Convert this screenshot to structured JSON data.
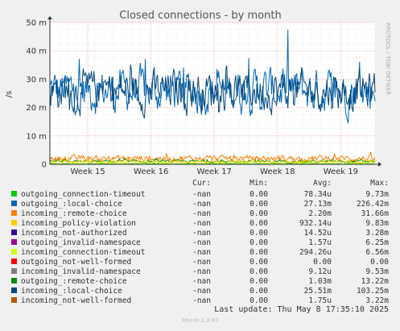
{
  "chart_data": {
    "type": "line",
    "title": "Closed connections - by month",
    "ylabel": "/s",
    "side_label": "RRDTOOL / TOBI OETIKER",
    "ylim": [
      0,
      50
    ],
    "y_unit": "m",
    "yticks": [
      0,
      10,
      20,
      30,
      40,
      50
    ],
    "ytick_labels": [
      "0",
      "10 m",
      "20 m",
      "30 m",
      "40 m",
      "50 m"
    ],
    "x_range_days": [
      0,
      36
    ],
    "xticks": [
      {
        "day": 4.2,
        "label": "Week 15"
      },
      {
        "day": 11.2,
        "label": "Week 16"
      },
      {
        "day": 18.2,
        "label": "Week 17"
      },
      {
        "day": 25.2,
        "label": "Week 18"
      },
      {
        "day": 32.2,
        "label": "Week 19"
      }
    ],
    "grid": true,
    "legend_headers": {
      "cur": "Cur:",
      "min": "Min:",
      "avg": "Avg:",
      "max": "Max:"
    },
    "series": [
      {
        "name": "outgoing_connection-timeout",
        "color": "#00cc00",
        "cur": "-nan",
        "min": "0.00",
        "avg": "78.34u",
        "max": "9.73m"
      },
      {
        "name": "outgoing_:local-choice",
        "color": "#0066b3",
        "cur": "-nan",
        "min": "0.00",
        "avg": "27.13m",
        "max": "226.42m"
      },
      {
        "name": "incoming_:remote-choice",
        "color": "#ff8000",
        "cur": "-nan",
        "min": "0.00",
        "avg": "2.20m",
        "max": "31.66m"
      },
      {
        "name": "incoming_policy-violation",
        "color": "#ffcc00",
        "cur": "-nan",
        "min": "0.00",
        "avg": "932.14u",
        "max": "9.83m"
      },
      {
        "name": "incoming_not-authorized",
        "color": "#330099",
        "cur": "-nan",
        "min": "0.00",
        "avg": "14.52u",
        "max": "3.28m"
      },
      {
        "name": "outgoing_invalid-namespace",
        "color": "#990099",
        "cur": "-nan",
        "min": "0.00",
        "avg": "1.57u",
        "max": "6.25m"
      },
      {
        "name": "incoming_connection-timeout",
        "color": "#ccff00",
        "cur": "-nan",
        "min": "0.00",
        "avg": "294.26u",
        "max": "6.56m"
      },
      {
        "name": "outgoing_not-well-formed",
        "color": "#ff0000",
        "cur": "-nan",
        "min": "0.00",
        "avg": "0.00",
        "max": "0.00"
      },
      {
        "name": "incoming_invalid-namespace",
        "color": "#808080",
        "cur": "-nan",
        "min": "0.00",
        "avg": "9.12u",
        "max": "9.53m"
      },
      {
        "name": "outgoing_:remote-choice",
        "color": "#008f00",
        "cur": "-nan",
        "min": "0.00",
        "avg": "1.03m",
        "max": "13.22m"
      },
      {
        "name": "incoming_:local-choice",
        "color": "#00487d",
        "cur": "-nan",
        "min": "0.00",
        "avg": "25.51m",
        "max": "103.25m"
      },
      {
        "name": "incoming_not-well-formed",
        "color": "#b35a00",
        "cur": "-nan",
        "min": "0.00",
        "avg": "1.75u",
        "max": "3.22m"
      }
    ],
    "last_update": "Last update:  Thu May  8 17:35:10 2025",
    "footer": "Munin 2.0.67"
  }
}
